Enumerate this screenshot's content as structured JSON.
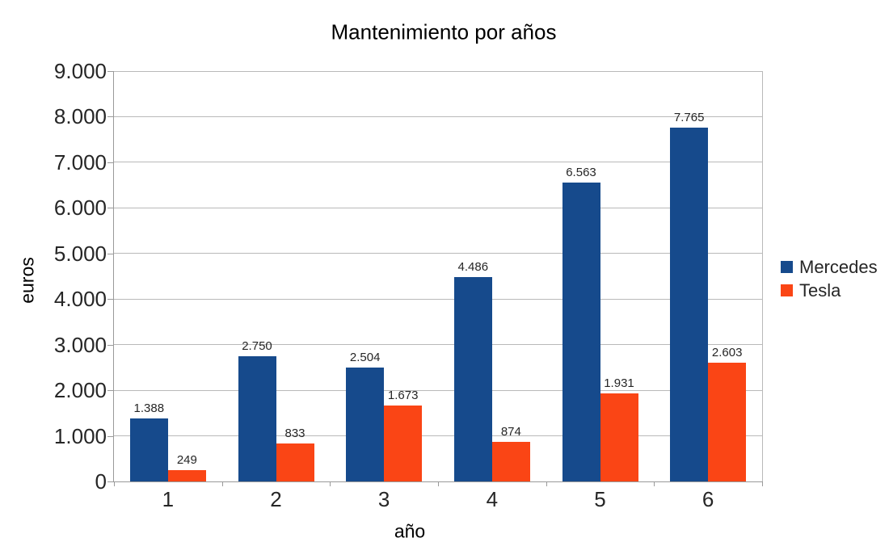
{
  "chart_data": {
    "type": "bar",
    "title": "Mantenimiento por años",
    "xlabel": "año",
    "ylabel": "euros",
    "categories": [
      "1",
      "2",
      "3",
      "4",
      "5",
      "6"
    ],
    "series": [
      {
        "name": "Mercedes",
        "color": "#164A8C",
        "values": [
          1388,
          2750,
          2504,
          4486,
          6563,
          7765
        ],
        "data_labels": [
          "1.388",
          "2.750",
          "2.504",
          "4.486",
          "6.563",
          "7.765"
        ]
      },
      {
        "name": "Tesla",
        "color": "#FA4515",
        "values": [
          249,
          833,
          1673,
          874,
          1931,
          2603
        ],
        "data_labels": [
          "249",
          "833",
          "1.673",
          "874",
          "1.931",
          "2.603"
        ]
      }
    ],
    "ylim": [
      0,
      9000
    ],
    "ytick_step": 1000,
    "ytick_labels": [
      "0",
      "1.000",
      "2.000",
      "3.000",
      "4.000",
      "5.000",
      "6.000",
      "7.000",
      "8.000",
      "9.000"
    ],
    "grid": true,
    "legend_position": "right"
  },
  "colors": {
    "background": "#ffffff",
    "grid": "#b9b9b9",
    "axis": "#9a9a9a",
    "text": "#262626"
  }
}
